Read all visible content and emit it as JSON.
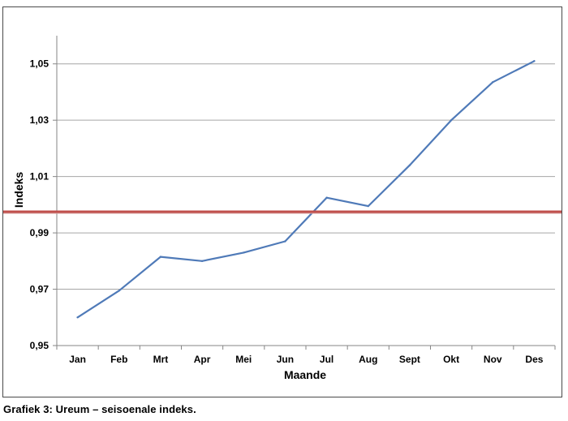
{
  "caption": "Grafiek 3: Ureum – seisoenale indeks.",
  "chart_data": {
    "type": "line",
    "title": "",
    "xlabel": "Maande",
    "ylabel": "Indeks",
    "categories": [
      "Jan",
      "Feb",
      "Mrt",
      "Apr",
      "Mei",
      "Jun",
      "Jul",
      "Aug",
      "Sept",
      "Okt",
      "Nov",
      "Des"
    ],
    "series": [
      {
        "values": [
          0.96,
          0.9695,
          0.9815,
          0.98,
          0.983,
          0.987,
          1.0025,
          0.9995,
          1.014,
          1.03,
          1.0435,
          1.051
        ],
        "color": "#4f7ab8"
      }
    ],
    "reference_line": {
      "value": 0.9975,
      "color": "#c0504d"
    },
    "ylim": [
      0.95,
      1.06
    ],
    "yticks": [
      "0,95",
      "0,97",
      "0,99",
      "1,01",
      "1,03",
      "1,05"
    ],
    "ytick_values": [
      0.95,
      0.97,
      0.99,
      1.01,
      1.03,
      1.05
    ],
    "grid": true,
    "gridline_color": "#a6a6a6"
  }
}
